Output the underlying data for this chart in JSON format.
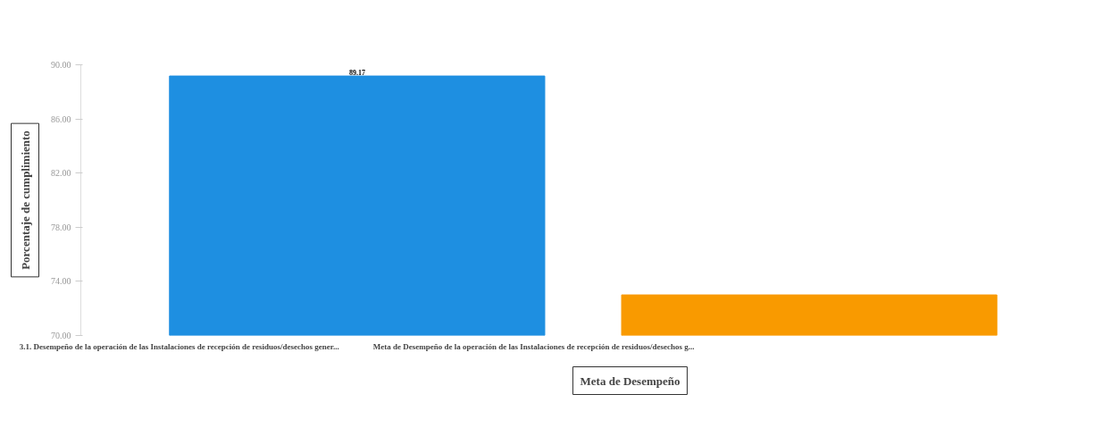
{
  "chart_data": {
    "type": "bar",
    "xlabel": "Meta de Desempeño",
    "ylabel": "Porcentaje de cumplimiento",
    "categories": [
      null
    ],
    "series": [
      {
        "name": "3.1. Desempeño de la operación de las Instalaciones de recepción de residuos/desechos gener...",
        "color": "#1e8fe1",
        "values": [
          89.17
        ],
        "value_labels": [
          "89.17"
        ]
      },
      {
        "name": "Meta de Desempeño de la operación de las Instalaciones de recepción de residuos/desechos g...",
        "color": "#f99a00",
        "values": [
          73
        ]
      }
    ],
    "ylim": [
      70,
      90
    ],
    "yticks": [
      {
        "value": 70,
        "label": "70.00"
      },
      {
        "value": 74,
        "label": "74.00"
      },
      {
        "value": 78,
        "label": "78.00"
      },
      {
        "value": 82,
        "label": "82.00"
      },
      {
        "value": 86,
        "label": "86.00"
      },
      {
        "value": 90,
        "label": "90.00"
      }
    ],
    "grid": false,
    "legend": "bottom left"
  }
}
